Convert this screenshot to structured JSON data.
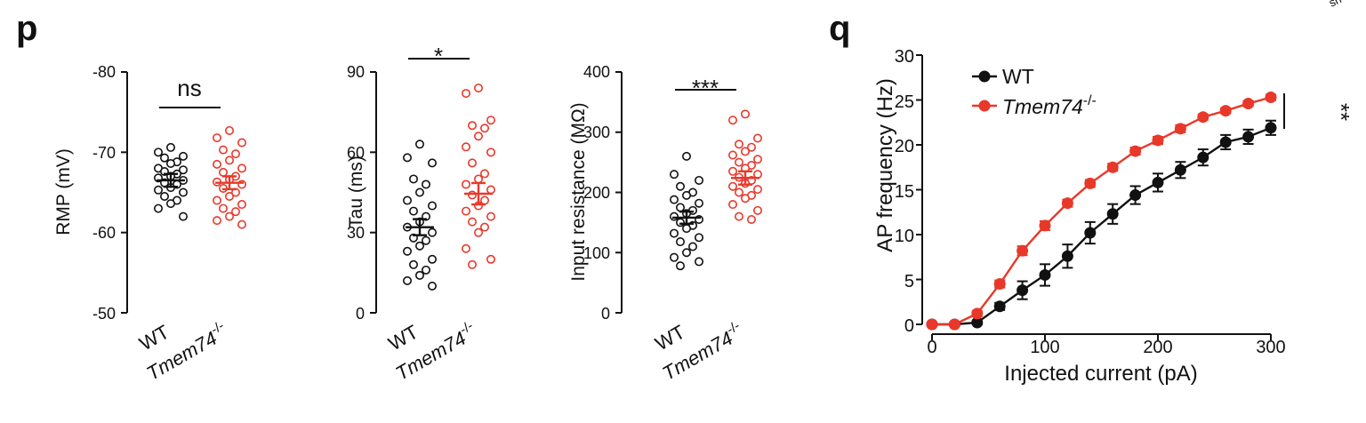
{
  "colors": {
    "wt": "#111111",
    "ko": "#e8382a",
    "axis": "#111111"
  },
  "panel_labels": {
    "p": "p",
    "q": "q"
  },
  "corner_fragment": "sh",
  "chart_data": [
    {
      "id": "rmp",
      "type": "scatter",
      "ylabel": "RMP (mV)",
      "ylim": [
        -50,
        -80
      ],
      "yticks": [
        "-80",
        "-70",
        "-60",
        "-50"
      ],
      "ytick_values": [
        -80,
        -70,
        -60,
        -50
      ],
      "categories": [
        "WT",
        "Tmem74"
      ],
      "category_superscript": [
        "",
        "-/-"
      ],
      "significance": "ns",
      "series": [
        {
          "name": "WT",
          "mean": -66.5,
          "sem": 0.8,
          "values": [
            -70.6,
            -70.0,
            -69.5,
            -69.3,
            -68.8,
            -68.6,
            -68.0,
            -67.8,
            -67.6,
            -67.3,
            -67.0,
            -66.8,
            -66.5,
            -66.2,
            -66.0,
            -65.6,
            -65.3,
            -65.0,
            -64.5,
            -64.0,
            -63.6,
            -63.0,
            -62.0
          ]
        },
        {
          "name": "Tmem74-/-",
          "mean": -66.2,
          "sem": 0.8,
          "values": [
            -72.7,
            -71.8,
            -71.2,
            -70.3,
            -69.8,
            -69.0,
            -68.5,
            -68.0,
            -67.5,
            -67.0,
            -66.6,
            -66.3,
            -66.0,
            -65.5,
            -65.0,
            -64.5,
            -64.0,
            -63.5,
            -63.0,
            -62.6,
            -62.0,
            -61.5,
            -61.0
          ]
        }
      ]
    },
    {
      "id": "tau",
      "type": "scatter",
      "ylabel": "Tau (ms)",
      "ylim": [
        0,
        90
      ],
      "yticks": [
        "0",
        "30",
        "60",
        "90"
      ],
      "ytick_values": [
        0,
        30,
        60,
        90
      ],
      "categories": [
        "WT",
        "Tmem74"
      ],
      "category_superscript": [
        "",
        "-/-"
      ],
      "significance": "*",
      "series": [
        {
          "name": "WT",
          "mean": 32,
          "sem": 3,
          "values": [
            63,
            58,
            56,
            50,
            48,
            45,
            42,
            40,
            38,
            36,
            34,
            32,
            30,
            28,
            27,
            25,
            23,
            20,
            18,
            16,
            14,
            12,
            10
          ]
        },
        {
          "name": "Tmem74-/-",
          "mean": 44.5,
          "sem": 4,
          "values": [
            84,
            82,
            72,
            70,
            69,
            66,
            62,
            60,
            56,
            52,
            50,
            48,
            46,
            44,
            42,
            40,
            38,
            36,
            34,
            32,
            30,
            24,
            20,
            18
          ]
        }
      ]
    },
    {
      "id": "ir",
      "type": "scatter",
      "ylabel": "Input resistance (MΩ)",
      "ylim": [
        0,
        400
      ],
      "yticks": [
        "0",
        "100",
        "200",
        "300",
        "400"
      ],
      "ytick_values": [
        0,
        100,
        200,
        300,
        400
      ],
      "categories": [
        "WT",
        "Tmem74"
      ],
      "category_superscript": [
        "",
        "-/-"
      ],
      "significance": "***",
      "series": [
        {
          "name": "WT",
          "mean": 158,
          "sem": 10,
          "values": [
            260,
            230,
            220,
            210,
            200,
            195,
            188,
            182,
            175,
            170,
            165,
            160,
            155,
            150,
            145,
            140,
            132,
            125,
            118,
            110,
            100,
            92,
            85,
            78
          ]
        },
        {
          "name": "Tmem74-/-",
          "mean": 224,
          "sem": 11,
          "values": [
            330,
            320,
            290,
            280,
            275,
            268,
            262,
            255,
            250,
            245,
            240,
            235,
            230,
            225,
            220,
            215,
            210,
            205,
            200,
            195,
            190,
            180,
            170,
            160,
            155
          ]
        }
      ]
    },
    {
      "id": "ap",
      "type": "line",
      "xlabel": "Injected current (pA)",
      "ylabel": "AP frequency (Hz)",
      "xlim": [
        0,
        300
      ],
      "ylim": [
        0,
        30
      ],
      "xticks": [
        "0",
        "100",
        "200",
        "300"
      ],
      "xtick_values": [
        0,
        100,
        200,
        300
      ],
      "yticks": [
        "0",
        "5",
        "10",
        "15",
        "20",
        "25",
        "30"
      ],
      "ytick_values": [
        0,
        5,
        10,
        15,
        20,
        25,
        30
      ],
      "significance": "**",
      "x": [
        0,
        20,
        40,
        60,
        80,
        100,
        120,
        140,
        160,
        180,
        200,
        220,
        240,
        260,
        280,
        300
      ],
      "series": [
        {
          "name": "WT",
          "superscript": "",
          "values": [
            0,
            0,
            0.2,
            2.0,
            3.8,
            5.5,
            7.6,
            10.2,
            12.3,
            14.4,
            15.8,
            17.2,
            18.6,
            20.3,
            20.9,
            21.9
          ],
          "sem": [
            0,
            0,
            0.2,
            0.4,
            1.0,
            1.2,
            1.3,
            1.2,
            1.1,
            1.0,
            1.0,
            0.9,
            0.9,
            0.8,
            0.8,
            0.8
          ]
        },
        {
          "name": "Tmem74",
          "superscript": "-/-",
          "values": [
            0,
            0,
            1.2,
            4.5,
            8.2,
            11.0,
            13.5,
            15.7,
            17.5,
            19.3,
            20.5,
            21.8,
            23.1,
            23.8,
            24.6,
            25.3
          ],
          "sem": [
            0,
            0,
            0.3,
            0.4,
            0.5,
            0.5,
            0.4,
            0.4,
            0.4,
            0.4,
            0.4,
            0.4,
            0.3,
            0.3,
            0.3,
            0.3
          ]
        }
      ]
    }
  ]
}
